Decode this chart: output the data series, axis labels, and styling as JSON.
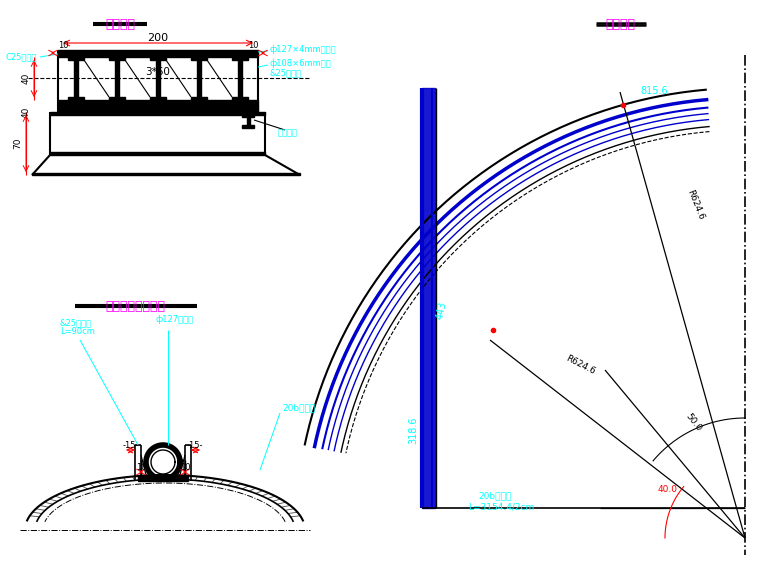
{
  "bg_color": "#ffffff",
  "title1": "套拱剖面",
  "title2": "孔口管安装示意图",
  "title3": "钢束大样",
  "cyan": "#00ffff",
  "magenta": "#ff00ff",
  "black": "#000000",
  "blue": "#0000cd",
  "red": "#ff0000"
}
